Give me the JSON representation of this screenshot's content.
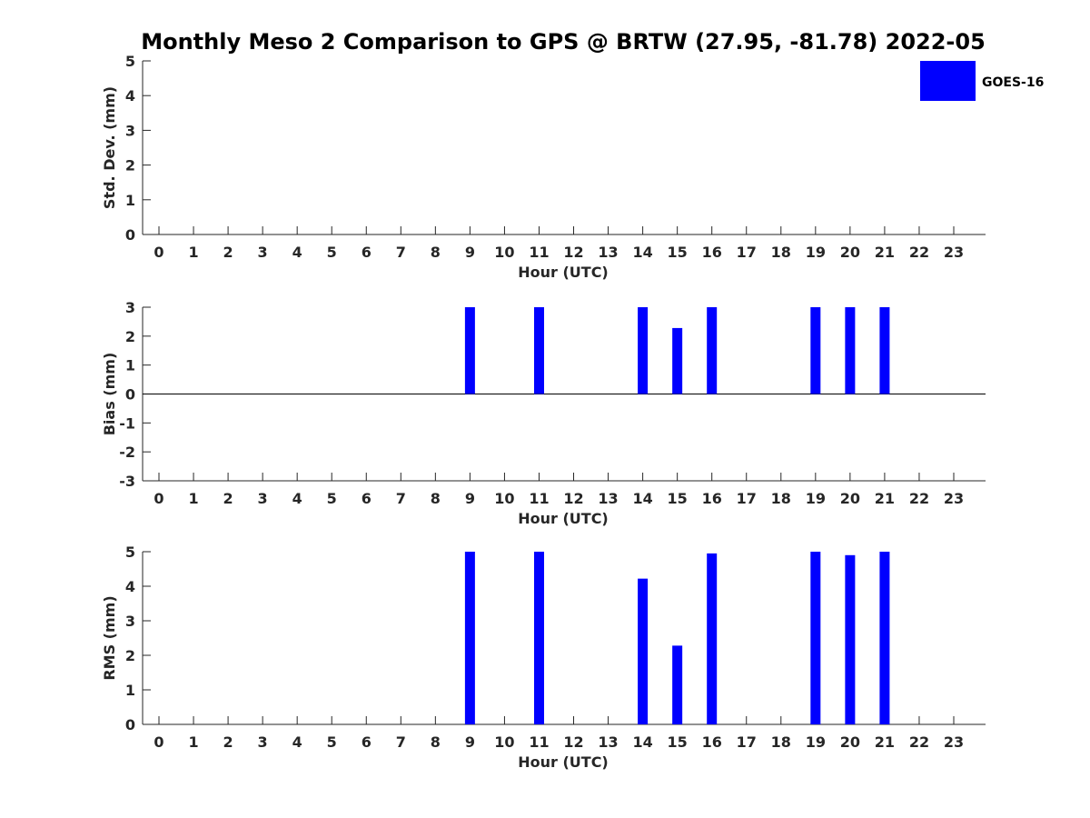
{
  "chart_data": {
    "title": "Monthly Meso 2 Comparison to GPS @ BRTW (27.95, -81.78) 2022-05",
    "type": "bar",
    "legend": {
      "label": "GOES-16",
      "color": "#0000ff",
      "position": "top-right"
    },
    "xlabel": "Hour (UTC)",
    "categories": [
      "0",
      "1",
      "2",
      "3",
      "4",
      "5",
      "6",
      "7",
      "8",
      "9",
      "10",
      "11",
      "12",
      "13",
      "14",
      "15",
      "16",
      "17",
      "18",
      "19",
      "20",
      "21",
      "22",
      "23"
    ],
    "panels": [
      {
        "ylabel": "Std. Dev. (mm)",
        "ylim": [
          0,
          5
        ],
        "yticks": [
          "0",
          "1",
          "2",
          "3",
          "4",
          "5"
        ],
        "x": [],
        "values": []
      },
      {
        "ylabel": "Bias (mm)",
        "ylim": [
          -3,
          3
        ],
        "yticks": [
          "-3",
          "-2",
          "-1",
          "0",
          "1",
          "2",
          "3"
        ],
        "x": [
          9,
          11,
          14,
          15,
          16,
          19,
          20,
          21
        ],
        "values": [
          3,
          3,
          3,
          2.28,
          3,
          3,
          3,
          3
        ]
      },
      {
        "ylabel": "RMS (mm)",
        "ylim": [
          0,
          5
        ],
        "yticks": [
          "0",
          "1",
          "2",
          "3",
          "4",
          "5"
        ],
        "x": [
          9,
          11,
          14,
          15,
          16,
          19,
          20,
          21
        ],
        "values": [
          5,
          5,
          4.22,
          2.28,
          4.95,
          5,
          4.9,
          5
        ]
      }
    ]
  }
}
